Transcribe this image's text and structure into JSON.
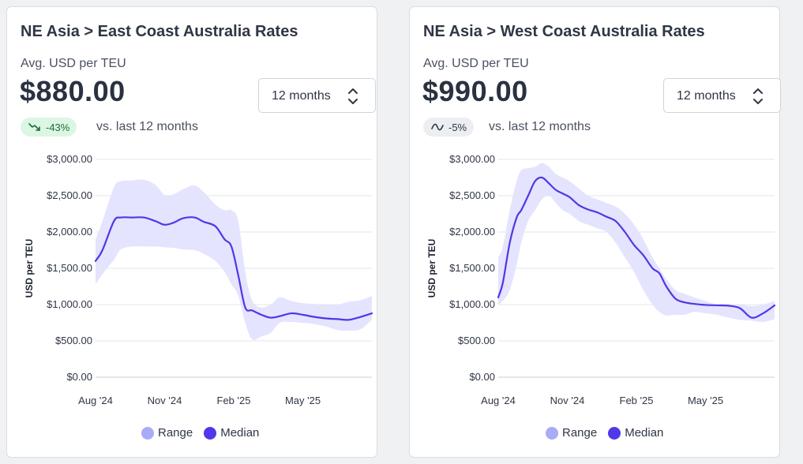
{
  "colors": {
    "range_fill": "#e4e4ff",
    "median_line": "#5236e6",
    "range_legend": "#a9abf6",
    "median_legend": "#4f38eb"
  },
  "legend": {
    "range_label": "Range",
    "median_label": "Median"
  },
  "cards": [
    {
      "title": "NE Asia > East Coast Australia Rates",
      "metric_label": "Avg. USD per TEU",
      "value": "$880.00",
      "period_select": "12 months",
      "change_badge": "-43%",
      "change_icon": "trend-down-icon",
      "comparison_text": "vs. last 12 months"
    },
    {
      "title": "NE Asia > West Coast Australia Rates",
      "metric_label": "Avg. USD per TEU",
      "value": "$990.00",
      "period_select": "12 months",
      "change_badge": "-5%",
      "change_icon": "trend-flat-icon",
      "comparison_text": "vs. last 12 months"
    }
  ],
  "chart_data": [
    {
      "type": "area",
      "ylabel": "USD per TEU",
      "ylim": [
        0,
        3000
      ],
      "y_ticks": [
        "$0.00",
        "$500.00",
        "$1,000.00",
        "$1,500.00",
        "$2,000.00",
        "$2,500.00",
        "$3,000.00"
      ],
      "x_ticks": [
        "Aug '24",
        "Nov '24",
        "Feb '25",
        "May '25"
      ],
      "x_tick_positions": [
        0,
        3,
        6,
        9
      ],
      "x_range": [
        0,
        12
      ],
      "legend": "bottom-center",
      "grid": true,
      "series": [
        {
          "name": "Range",
          "x": [
            0,
            0.3,
            0.8,
            1.1,
            1.6,
            2.1,
            2.6,
            3.0,
            3.4,
            3.8,
            4.3,
            4.7,
            5.2,
            5.6,
            5.9,
            6.2,
            6.5,
            6.8,
            7.2,
            7.6,
            8.0,
            8.5,
            9.0,
            9.5,
            10.0,
            10.5,
            11.0,
            11.5,
            12.0
          ],
          "low": [
            1280,
            1420,
            1620,
            1760,
            1800,
            1800,
            1800,
            1790,
            1780,
            1760,
            1750,
            1700,
            1600,
            1450,
            1280,
            1120,
            750,
            520,
            560,
            610,
            750,
            760,
            750,
            730,
            700,
            650,
            640,
            660,
            790
          ],
          "high": [
            1900,
            2150,
            2620,
            2700,
            2710,
            2720,
            2650,
            2510,
            2520,
            2590,
            2640,
            2550,
            2380,
            2300,
            2300,
            2150,
            1450,
            1060,
            960,
            1000,
            1100,
            1050,
            1020,
            1010,
            1000,
            1000,
            1040,
            1060,
            1120
          ]
        },
        {
          "name": "Median",
          "x": [
            0,
            0.3,
            0.8,
            1.1,
            1.6,
            2.1,
            2.6,
            3.0,
            3.4,
            3.8,
            4.3,
            4.7,
            5.2,
            5.6,
            5.9,
            6.2,
            6.5,
            6.8,
            7.2,
            7.6,
            8.0,
            8.5,
            9.0,
            9.5,
            10.0,
            10.5,
            11.0,
            11.5,
            12.0
          ],
          "values": [
            1600,
            1750,
            2150,
            2200,
            2200,
            2200,
            2150,
            2100,
            2130,
            2190,
            2200,
            2140,
            2080,
            1900,
            1800,
            1400,
            960,
            920,
            860,
            820,
            840,
            880,
            860,
            830,
            810,
            800,
            790,
            830,
            880
          ]
        }
      ]
    },
    {
      "type": "area",
      "ylabel": "USD per TEU",
      "ylim": [
        0,
        3000
      ],
      "y_ticks": [
        "$0.00",
        "$500.00",
        "$1,000.00",
        "$1,500.00",
        "$2,000.00",
        "$2,500.00",
        "$3,000.00"
      ],
      "x_ticks": [
        "Aug '24",
        "Nov '24",
        "Feb '25",
        "May '25"
      ],
      "x_tick_positions": [
        0,
        3,
        6,
        9
      ],
      "x_range": [
        0,
        12
      ],
      "legend": "bottom-center",
      "grid": true,
      "series": [
        {
          "name": "Range",
          "x": [
            0,
            0.2,
            0.5,
            0.8,
            1.0,
            1.3,
            1.6,
            1.9,
            2.2,
            2.5,
            2.8,
            3.1,
            3.5,
            3.9,
            4.3,
            4.7,
            5.1,
            5.5,
            5.9,
            6.3,
            6.7,
            7.0,
            7.3,
            7.7,
            8.1,
            8.5,
            9.0,
            9.5,
            10.0,
            10.5,
            11.0,
            11.5,
            12.0
          ],
          "low": [
            1000,
            1050,
            1200,
            1550,
            1850,
            2150,
            2300,
            2450,
            2500,
            2400,
            2300,
            2250,
            2150,
            2100,
            2050,
            2000,
            1850,
            1650,
            1450,
            1200,
            1000,
            900,
            850,
            860,
            860,
            900,
            880,
            860,
            820,
            790,
            780,
            760,
            800
          ],
          "high": [
            1650,
            1800,
            2300,
            2700,
            2850,
            2880,
            2900,
            2950,
            2900,
            2800,
            2750,
            2700,
            2600,
            2500,
            2450,
            2400,
            2350,
            2250,
            2100,
            1900,
            1650,
            1500,
            1350,
            1200,
            1150,
            1100,
            1050,
            1000,
            1000,
            1000,
            980,
            1000,
            1050
          ]
        },
        {
          "name": "Median",
          "x": [
            0,
            0.2,
            0.5,
            0.8,
            1.0,
            1.3,
            1.6,
            1.9,
            2.2,
            2.5,
            2.8,
            3.1,
            3.5,
            3.9,
            4.3,
            4.7,
            5.1,
            5.5,
            5.9,
            6.3,
            6.7,
            7.0,
            7.3,
            7.7,
            8.1,
            8.5,
            9.0,
            9.5,
            10.0,
            10.5,
            11.0,
            11.5,
            12.0
          ],
          "values": [
            1100,
            1300,
            1850,
            2200,
            2300,
            2500,
            2700,
            2750,
            2670,
            2580,
            2530,
            2480,
            2370,
            2310,
            2270,
            2210,
            2150,
            2000,
            1820,
            1680,
            1500,
            1430,
            1250,
            1080,
            1030,
            1010,
            995,
            990,
            985,
            950,
            820,
            880,
            990
          ]
        }
      ]
    }
  ]
}
